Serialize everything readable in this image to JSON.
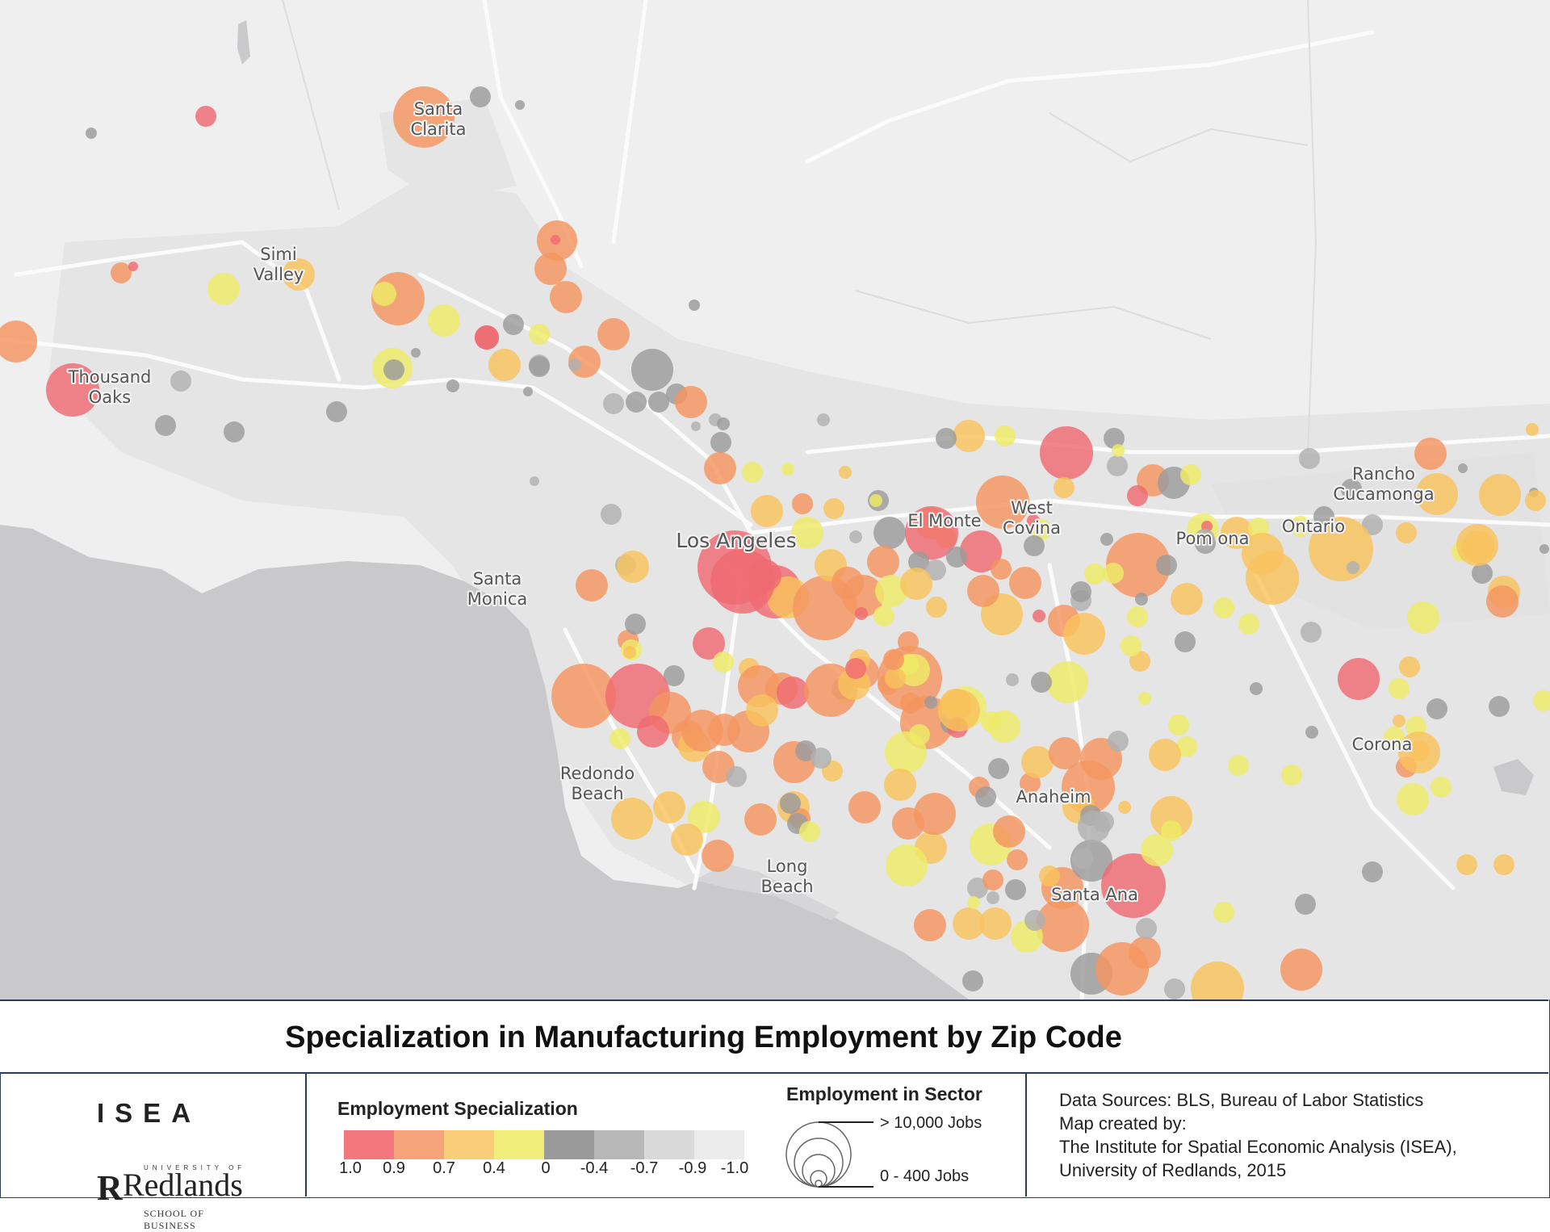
{
  "title": "Specialization in Manufacturing Employment by Zip Code",
  "cities": [
    {
      "name": "Santa Clarita",
      "lines": [
        "Santa",
        "Clarita"
      ]
    },
    {
      "name": "Simi Valley",
      "lines": [
        "Simi",
        "Valley"
      ]
    },
    {
      "name": "Thousand Oaks",
      "lines": [
        "Thousand",
        "Oaks"
      ]
    },
    {
      "name": "Los Angeles",
      "lines": [
        "Los Angeles"
      ]
    },
    {
      "name": "Santa Monica",
      "lines": [
        "Santa",
        "Monica"
      ]
    },
    {
      "name": "El Monte",
      "lines": [
        "El Monte"
      ]
    },
    {
      "name": "West Covina",
      "lines": [
        "West",
        "Covina"
      ]
    },
    {
      "name": "Pomona",
      "lines": [
        "Pom ona"
      ]
    },
    {
      "name": "Ontario",
      "lines": [
        "Ontario"
      ]
    },
    {
      "name": "Rancho Cucamonga",
      "lines": [
        "Rancho",
        "Cucamonga"
      ]
    },
    {
      "name": "Redondo Beach",
      "lines": [
        "Redondo",
        "Beach"
      ]
    },
    {
      "name": "Long Beach",
      "lines": [
        "Long",
        "Beach"
      ]
    },
    {
      "name": "Anaheim",
      "lines": [
        "Anaheim"
      ]
    },
    {
      "name": "Santa Ana",
      "lines": [
        "Santa Ana"
      ]
    },
    {
      "name": "Corona",
      "lines": [
        "Corona"
      ]
    }
  ],
  "legend": {
    "specialization": {
      "heading": "Employment Specialization",
      "classes": [
        {
          "label": "1.0",
          "color": "#f2787e"
        },
        {
          "label": "0.9",
          "color": "#f4a37a"
        },
        {
          "label": "0.7",
          "color": "#f9cd7a"
        },
        {
          "label": "0.4",
          "color": "#f1ed79"
        },
        {
          "label": "0",
          "color": "#9a9a9a"
        },
        {
          "label": "-0.4",
          "color": "#b7b7b7"
        },
        {
          "label": "-0.7",
          "color": "#d9d9d9"
        },
        {
          "label": "-0.9",
          "color": "#ececec"
        },
        {
          "label": "-1.0",
          "color": ""
        }
      ]
    },
    "size": {
      "heading": "Employment in Sector",
      "max_label": "> 10,000 Jobs",
      "min_label": "0 - 400 Jobs"
    }
  },
  "logo": {
    "isea": "ISEA",
    "university": "UNIVERSITY OF",
    "redlands": "Redlands",
    "school": "SCHOOL OF BUSINESS"
  },
  "sources": [
    "Data Sources: BLS, Bureau of Labor Statistics",
    "Map created by:",
    "The Institute for Spatial Economic Analysis (ISEA),",
    "University of Redlands, 2015"
  ],
  "map_colors": {
    "land": "#efefef",
    "urban": "#e4e4e4",
    "water": "#c9c9cb",
    "road": "#fbfbfb"
  }
}
